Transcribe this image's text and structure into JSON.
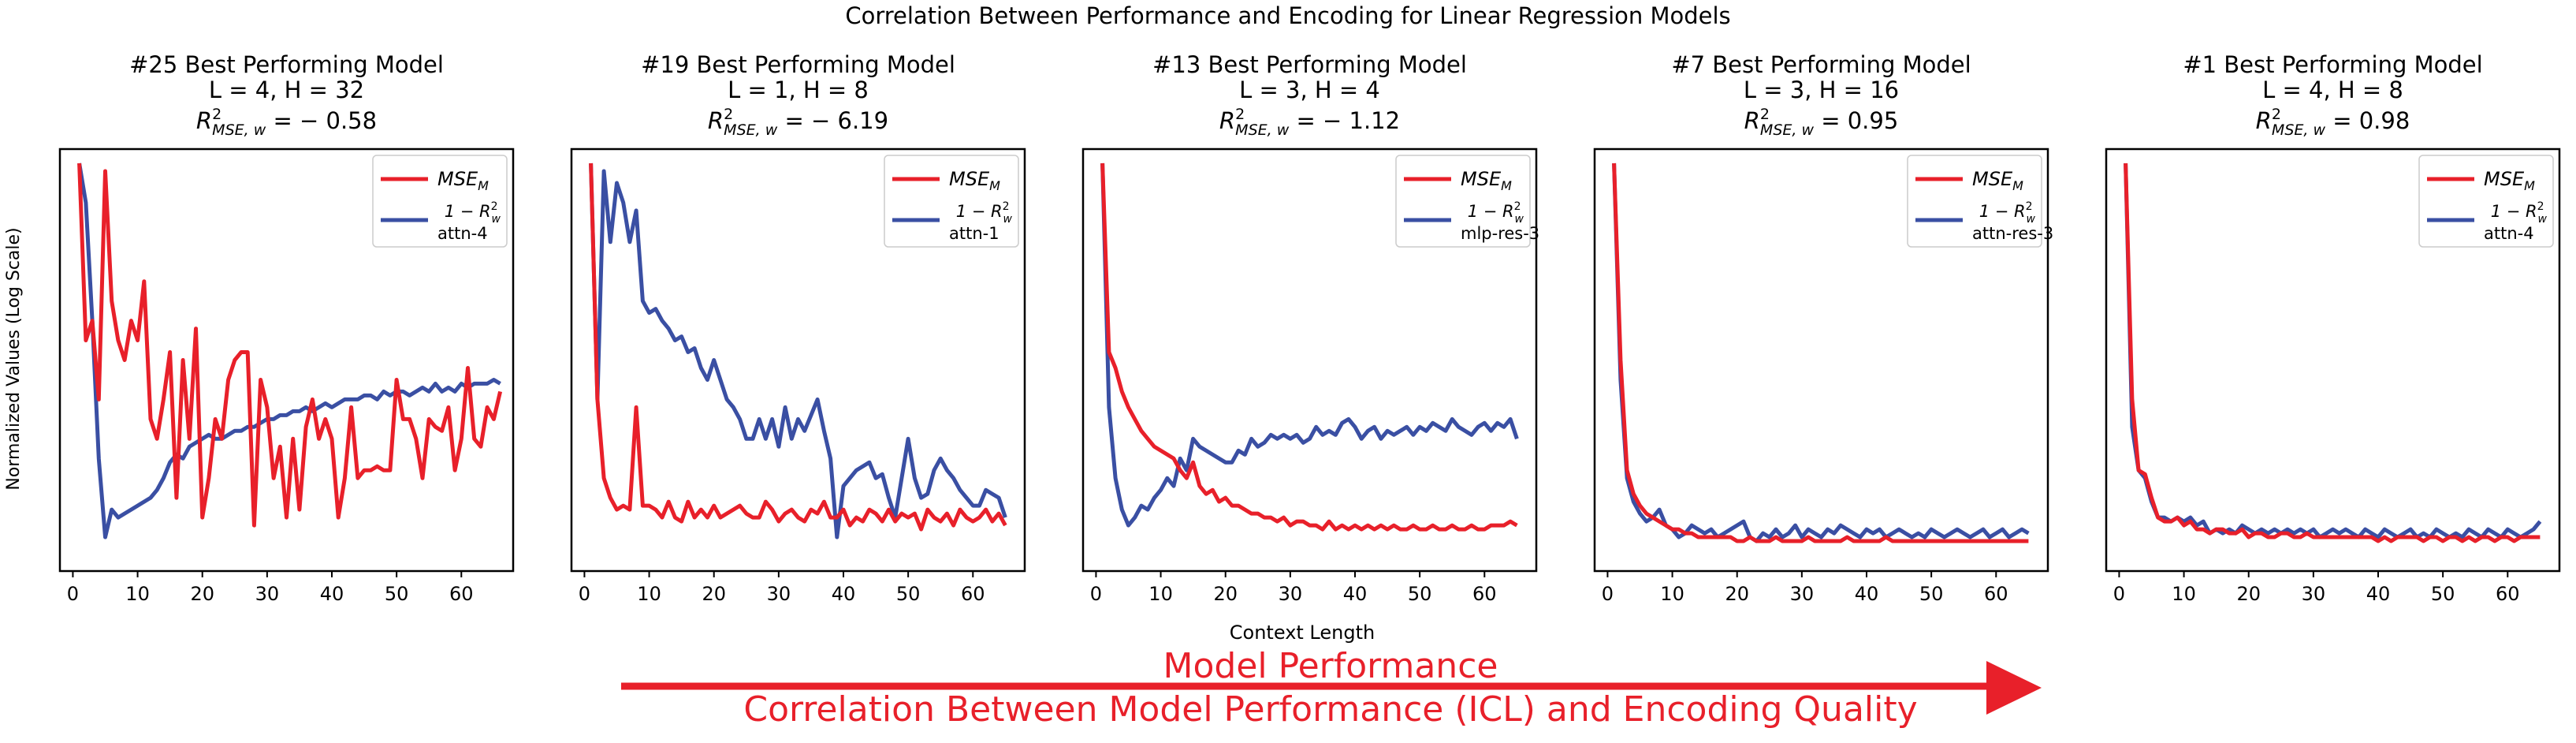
{
  "figure": {
    "suptitle": "Correlation Between Performance and Encoding for Linear Regression Models",
    "ylabel": "Normalized Values (Log Scale)",
    "xlabel": "Context Length",
    "arrow_label_top": "Model Performance",
    "arrow_label_bottom": "Correlation Between Model Performance (ICL) and Encoding Quality",
    "r2_label_prefix": "R",
    "r2_label_sup": "2",
    "r2_label_sub": "MSE, w",
    "legend_mse_main": "MSE",
    "legend_mse_sub": "M",
    "legend_r2_main": "1 − R",
    "legend_r2_sup": "2",
    "legend_r2_sub": "w"
  },
  "colors": {
    "mse": "#e8202a",
    "r2": "#3a4fa3",
    "arrow": "#e8202a"
  },
  "chart_data": [
    {
      "type": "line",
      "title": "#25 Best Performing Model",
      "config": "L = 4, H = 32",
      "r2_value": "= − 0.58",
      "encoding_name": "attn-4",
      "xlim": [
        -2,
        68
      ],
      "ylim": [
        0,
        1
      ],
      "xticks": [
        0,
        10,
        20,
        30,
        40,
        50,
        60
      ],
      "series": [
        {
          "name": "MSE_M",
          "x_start": 1,
          "values": [
            1.0,
            0.55,
            0.6,
            0.4,
            0.98,
            0.65,
            0.55,
            0.5,
            0.6,
            0.55,
            0.7,
            0.35,
            0.3,
            0.4,
            0.52,
            0.15,
            0.5,
            0.3,
            0.58,
            0.1,
            0.2,
            0.35,
            0.3,
            0.45,
            0.5,
            0.52,
            0.52,
            0.08,
            0.45,
            0.38,
            0.2,
            0.28,
            0.1,
            0.3,
            0.12,
            0.33,
            0.4,
            0.3,
            0.35,
            0.3,
            0.1,
            0.2,
            0.38,
            0.2,
            0.22,
            0.22,
            0.23,
            0.22,
            0.22,
            0.45,
            0.35,
            0.35,
            0.3,
            0.2,
            0.35,
            0.33,
            0.32,
            0.38,
            0.22,
            0.3,
            0.48,
            0.3,
            0.28,
            0.38,
            0.35,
            0.42
          ]
        },
        {
          "name": "1 − R²_w",
          "x_start": 1,
          "values": [
            1.0,
            0.9,
            0.6,
            0.25,
            0.05,
            0.12,
            0.1,
            0.11,
            0.12,
            0.13,
            0.14,
            0.15,
            0.17,
            0.2,
            0.24,
            0.26,
            0.25,
            0.28,
            0.29,
            0.3,
            0.31,
            0.3,
            0.3,
            0.31,
            0.32,
            0.32,
            0.33,
            0.33,
            0.34,
            0.35,
            0.35,
            0.36,
            0.36,
            0.37,
            0.37,
            0.38,
            0.37,
            0.38,
            0.39,
            0.38,
            0.39,
            0.4,
            0.4,
            0.4,
            0.41,
            0.41,
            0.4,
            0.42,
            0.41,
            0.42,
            0.42,
            0.41,
            0.42,
            0.43,
            0.42,
            0.44,
            0.42,
            0.43,
            0.42,
            0.44,
            0.43,
            0.44,
            0.44,
            0.44,
            0.45,
            0.44
          ]
        }
      ]
    },
    {
      "type": "line",
      "title": "#19 Best Performing Model",
      "config": "L = 1, H = 8",
      "r2_value": "= − 6.19",
      "encoding_name": "attn-1",
      "xlim": [
        -2,
        68
      ],
      "ylim": [
        0,
        1
      ],
      "xticks": [
        0,
        10,
        20,
        30,
        40,
        50,
        60
      ],
      "series": [
        {
          "name": "MSE_M",
          "x_start": 1,
          "values": [
            1.0,
            0.4,
            0.2,
            0.15,
            0.12,
            0.13,
            0.12,
            0.38,
            0.13,
            0.13,
            0.12,
            0.1,
            0.14,
            0.1,
            0.09,
            0.14,
            0.1,
            0.12,
            0.1,
            0.13,
            0.1,
            0.11,
            0.12,
            0.13,
            0.11,
            0.1,
            0.1,
            0.14,
            0.12,
            0.09,
            0.11,
            0.12,
            0.1,
            0.09,
            0.12,
            0.11,
            0.14,
            0.1,
            0.1,
            0.12,
            0.08,
            0.1,
            0.09,
            0.12,
            0.11,
            0.09,
            0.12,
            0.09,
            0.11,
            0.1,
            0.11,
            0.07,
            0.12,
            0.1,
            0.09,
            0.11,
            0.08,
            0.12,
            0.1,
            0.09,
            0.1,
            0.12,
            0.09,
            0.11,
            0.08
          ]
        },
        {
          "name": "1 − R²_w",
          "x_start": 1,
          "values": [
            1.0,
            0.4,
            0.98,
            0.8,
            0.95,
            0.9,
            0.8,
            0.88,
            0.65,
            0.62,
            0.63,
            0.6,
            0.58,
            0.55,
            0.56,
            0.52,
            0.53,
            0.48,
            0.45,
            0.5,
            0.45,
            0.4,
            0.38,
            0.35,
            0.3,
            0.3,
            0.35,
            0.3,
            0.35,
            0.28,
            0.38,
            0.3,
            0.35,
            0.32,
            0.36,
            0.4,
            0.32,
            0.25,
            0.05,
            0.18,
            0.2,
            0.22,
            0.23,
            0.24,
            0.2,
            0.21,
            0.15,
            0.1,
            0.2,
            0.3,
            0.2,
            0.15,
            0.16,
            0.22,
            0.25,
            0.22,
            0.2,
            0.17,
            0.15,
            0.13,
            0.13,
            0.17,
            0.16,
            0.15,
            0.1
          ]
        }
      ]
    },
    {
      "type": "line",
      "title": "#13 Best Performing Model",
      "config": "L = 3, H = 4",
      "r2_value": "= − 1.12",
      "encoding_name": "mlp-res-3",
      "xlim": [
        -2,
        68
      ],
      "ylim": [
        0,
        1
      ],
      "xticks": [
        0,
        10,
        20,
        30,
        40,
        50,
        60
      ],
      "series": [
        {
          "name": "MSE_M",
          "x_start": 1,
          "values": [
            1.0,
            0.52,
            0.48,
            0.42,
            0.38,
            0.35,
            0.32,
            0.3,
            0.28,
            0.27,
            0.26,
            0.25,
            0.22,
            0.2,
            0.24,
            0.18,
            0.16,
            0.17,
            0.14,
            0.15,
            0.13,
            0.13,
            0.12,
            0.11,
            0.11,
            0.1,
            0.1,
            0.09,
            0.1,
            0.08,
            0.09,
            0.09,
            0.08,
            0.08,
            0.07,
            0.09,
            0.07,
            0.08,
            0.07,
            0.08,
            0.07,
            0.08,
            0.07,
            0.08,
            0.07,
            0.08,
            0.07,
            0.07,
            0.08,
            0.07,
            0.07,
            0.08,
            0.07,
            0.07,
            0.08,
            0.07,
            0.07,
            0.08,
            0.07,
            0.07,
            0.08,
            0.08,
            0.08,
            0.09,
            0.08
          ]
        },
        {
          "name": "1 − R²_w",
          "x_start": 1,
          "values": [
            1.0,
            0.38,
            0.2,
            0.12,
            0.08,
            0.1,
            0.13,
            0.12,
            0.15,
            0.17,
            0.2,
            0.18,
            0.25,
            0.22,
            0.3,
            0.28,
            0.27,
            0.26,
            0.25,
            0.24,
            0.24,
            0.27,
            0.26,
            0.3,
            0.28,
            0.29,
            0.31,
            0.3,
            0.31,
            0.3,
            0.31,
            0.29,
            0.3,
            0.33,
            0.31,
            0.32,
            0.31,
            0.34,
            0.35,
            0.33,
            0.3,
            0.32,
            0.33,
            0.3,
            0.32,
            0.31,
            0.32,
            0.33,
            0.31,
            0.33,
            0.32,
            0.34,
            0.33,
            0.32,
            0.35,
            0.33,
            0.32,
            0.31,
            0.33,
            0.34,
            0.32,
            0.34,
            0.33,
            0.35,
            0.3
          ]
        }
      ]
    },
    {
      "type": "line",
      "title": "#7 Best Performing Model",
      "config": "L = 3, H = 16",
      "r2_value": "= 0.95",
      "encoding_name": "attn-res-3",
      "xlim": [
        -2,
        68
      ],
      "ylim": [
        0,
        1
      ],
      "xticks": [
        0,
        10,
        20,
        30,
        40,
        50,
        60
      ],
      "series": [
        {
          "name": "MSE_M",
          "x_start": 1,
          "values": [
            1.0,
            0.5,
            0.22,
            0.16,
            0.13,
            0.11,
            0.1,
            0.09,
            0.08,
            0.07,
            0.07,
            0.06,
            0.06,
            0.05,
            0.05,
            0.05,
            0.05,
            0.05,
            0.05,
            0.04,
            0.04,
            0.05,
            0.04,
            0.04,
            0.04,
            0.05,
            0.04,
            0.04,
            0.04,
            0.04,
            0.05,
            0.04,
            0.04,
            0.04,
            0.04,
            0.04,
            0.05,
            0.04,
            0.04,
            0.04,
            0.04,
            0.04,
            0.05,
            0.04,
            0.04,
            0.04,
            0.04,
            0.04,
            0.04,
            0.04,
            0.04,
            0.04,
            0.04,
            0.04,
            0.04,
            0.04,
            0.04,
            0.04,
            0.04,
            0.04,
            0.04,
            0.04,
            0.04,
            0.04,
            0.04
          ]
        },
        {
          "name": "1 − R²_w",
          "x_start": 1,
          "values": [
            1.0,
            0.45,
            0.2,
            0.14,
            0.11,
            0.09,
            0.1,
            0.12,
            0.08,
            0.07,
            0.05,
            0.06,
            0.08,
            0.07,
            0.06,
            0.07,
            0.05,
            0.06,
            0.07,
            0.08,
            0.09,
            0.05,
            0.04,
            0.06,
            0.05,
            0.07,
            0.05,
            0.06,
            0.08,
            0.05,
            0.07,
            0.06,
            0.05,
            0.07,
            0.06,
            0.08,
            0.07,
            0.06,
            0.05,
            0.07,
            0.06,
            0.07,
            0.05,
            0.06,
            0.07,
            0.06,
            0.05,
            0.06,
            0.05,
            0.07,
            0.06,
            0.05,
            0.06,
            0.07,
            0.06,
            0.05,
            0.06,
            0.07,
            0.05,
            0.06,
            0.07,
            0.05,
            0.06,
            0.07,
            0.06
          ]
        }
      ]
    },
    {
      "type": "line",
      "title": "#1 Best Performing Model",
      "config": "L = 4, H = 8",
      "r2_value": "= 0.98",
      "encoding_name": "attn-4",
      "xlim": [
        -2,
        68
      ],
      "ylim": [
        0,
        1
      ],
      "xticks": [
        0,
        10,
        20,
        30,
        40,
        50,
        60
      ],
      "series": [
        {
          "name": "MSE_M",
          "x_start": 1,
          "values": [
            1.0,
            0.4,
            0.22,
            0.21,
            0.15,
            0.1,
            0.09,
            0.09,
            0.1,
            0.08,
            0.09,
            0.07,
            0.07,
            0.06,
            0.07,
            0.07,
            0.06,
            0.06,
            0.07,
            0.05,
            0.06,
            0.06,
            0.05,
            0.05,
            0.06,
            0.06,
            0.05,
            0.05,
            0.06,
            0.05,
            0.05,
            0.05,
            0.05,
            0.05,
            0.05,
            0.05,
            0.05,
            0.05,
            0.05,
            0.04,
            0.05,
            0.04,
            0.05,
            0.05,
            0.05,
            0.05,
            0.04,
            0.05,
            0.05,
            0.04,
            0.05,
            0.05,
            0.04,
            0.05,
            0.04,
            0.05,
            0.05,
            0.04,
            0.05,
            0.05,
            0.04,
            0.05,
            0.05,
            0.05,
            0.05
          ]
        },
        {
          "name": "1 − R²_w",
          "x_start": 1,
          "values": [
            1.0,
            0.33,
            0.22,
            0.2,
            0.14,
            0.1,
            0.1,
            0.09,
            0.1,
            0.09,
            0.1,
            0.08,
            0.09,
            0.06,
            0.07,
            0.06,
            0.07,
            0.06,
            0.08,
            0.07,
            0.06,
            0.07,
            0.06,
            0.07,
            0.06,
            0.07,
            0.06,
            0.07,
            0.06,
            0.07,
            0.05,
            0.06,
            0.07,
            0.06,
            0.07,
            0.06,
            0.05,
            0.07,
            0.06,
            0.05,
            0.07,
            0.06,
            0.05,
            0.06,
            0.07,
            0.05,
            0.06,
            0.05,
            0.07,
            0.06,
            0.05,
            0.06,
            0.05,
            0.07,
            0.06,
            0.05,
            0.07,
            0.06,
            0.05,
            0.07,
            0.06,
            0.05,
            0.06,
            0.07,
            0.09
          ]
        }
      ]
    }
  ]
}
